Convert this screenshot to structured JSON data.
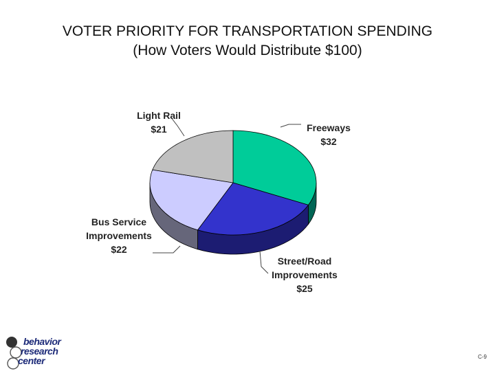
{
  "title_line1": "VOTER PRIORITY FOR TRANSPORTATION SPENDING",
  "title_line2": "(How Voters Would Distribute $100)",
  "chart_data": {
    "type": "pie",
    "title": "VOTER PRIORITY FOR TRANSPORTATION SPENDING",
    "subtitle": "(How Voters Would Distribute $100)",
    "slices": [
      {
        "label_lines": [
          "Freeways",
          "$32"
        ],
        "value": 32,
        "color": "#00cc99",
        "side": "#006655"
      },
      {
        "label_lines": [
          "Street/Road",
          "Improvements",
          "$25"
        ],
        "value": 25,
        "color": "#3333cc",
        "side": "#1c1c72"
      },
      {
        "label_lines": [
          "Bus Service",
          "Improvements",
          "$22"
        ],
        "value": 22,
        "color": "#ccccff",
        "side": "#66667a"
      },
      {
        "label_lines": [
          "Light Rail",
          "$21"
        ],
        "value": 21,
        "color": "#c0c0c0",
        "side": "#6e6e6e"
      }
    ]
  },
  "logo": {
    "line1": "behavior",
    "line2": "research",
    "line3": "center"
  },
  "page_number": "C-9"
}
